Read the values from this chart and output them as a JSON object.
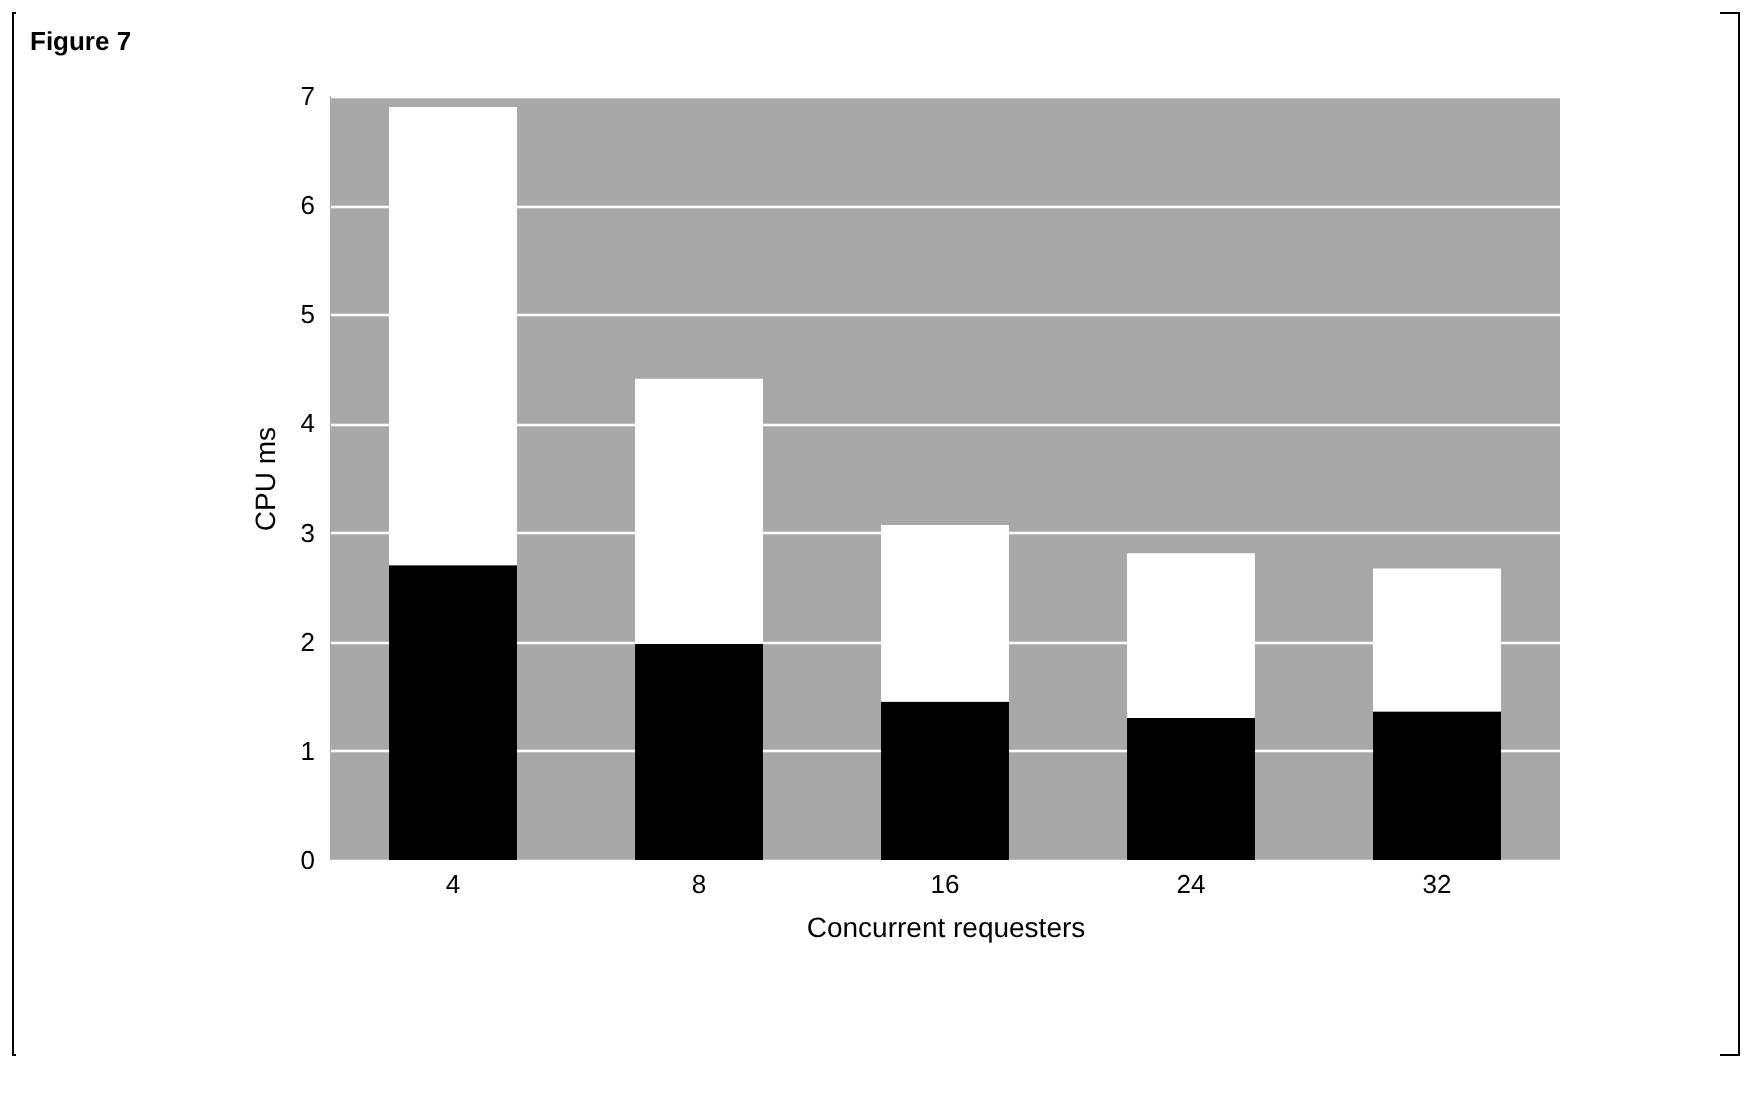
{
  "chart_data": {
    "type": "bar",
    "title": "Figure 7",
    "xlabel": "Concurrent requesters",
    "ylabel": "CPU ms",
    "categories": [
      "4",
      "8",
      "16",
      "24",
      "32"
    ],
    "stacked": true,
    "series": [
      {
        "color": "#000000",
        "values": [
          2.7,
          1.98,
          1.45,
          1.3,
          1.36
        ]
      },
      {
        "color": "#ffffff",
        "values": [
          4.2,
          2.43,
          1.62,
          1.51,
          1.31
        ]
      }
    ],
    "ylim": [
      0,
      7
    ],
    "yticks": [
      0,
      1,
      2,
      3,
      4,
      5,
      6,
      7
    ],
    "grid": "y"
  }
}
